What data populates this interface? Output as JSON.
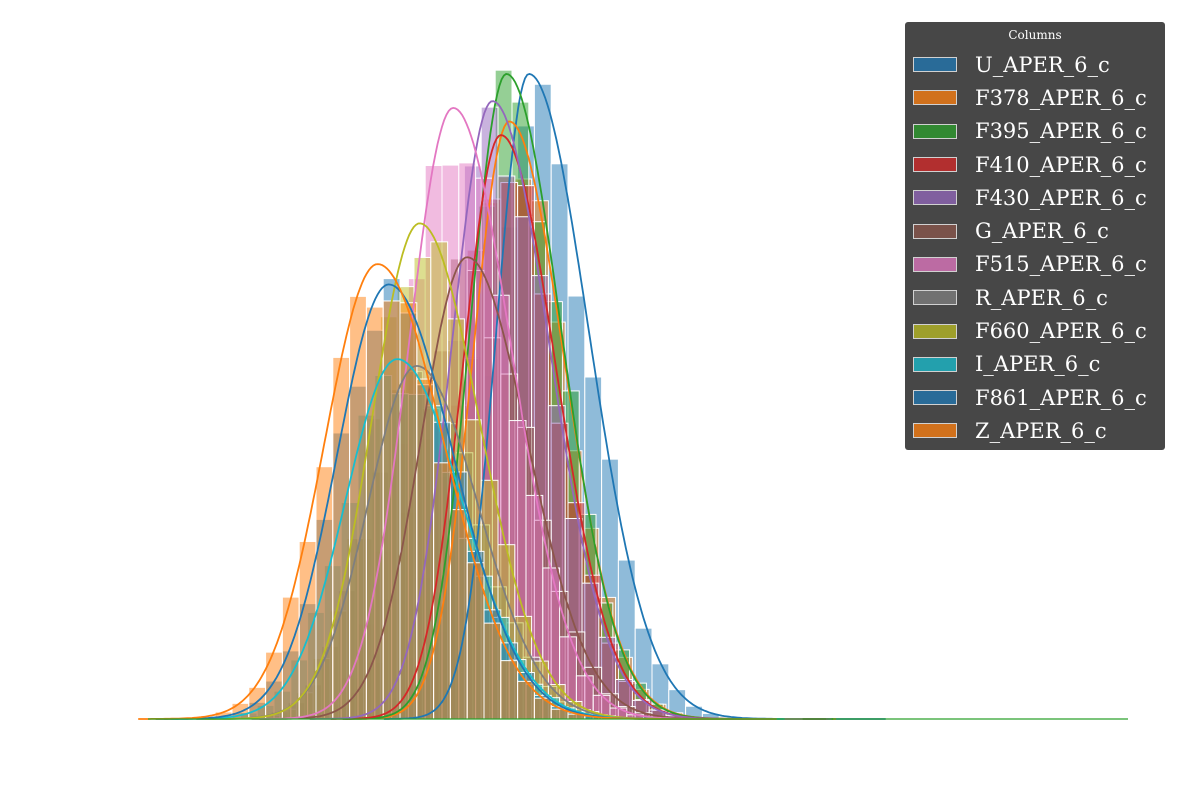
{
  "chart_data": {
    "type": "histogram",
    "title": "",
    "xlabel": "",
    "ylabel": "",
    "grid": true,
    "axes_visible": false,
    "kde": true,
    "legend": {
      "title": "Columns",
      "position": "top-right"
    },
    "series": [
      {
        "name": "U_APER_6_c",
        "color": "#1f77b4",
        "mean": 17.6,
        "std": 1.15,
        "peak": 0.95,
        "skew": 0.85
      },
      {
        "name": "F378_APER_6_c",
        "color": "#ff7f0e",
        "mean": 16.9,
        "std": 1.3,
        "peak": 0.88,
        "skew": 0.5
      },
      {
        "name": "F395_APER_6_c",
        "color": "#2ca02c",
        "mean": 16.8,
        "std": 1.3,
        "peak": 0.95,
        "skew": 0.5
      },
      {
        "name": "F410_APER_6_c",
        "color": "#d62728",
        "mean": 16.6,
        "std": 1.35,
        "peak": 0.86,
        "skew": 0.45
      },
      {
        "name": "F430_APER_6_c",
        "color": "#9467bd",
        "mean": 16.3,
        "std": 1.45,
        "peak": 0.91,
        "skew": 0.4
      },
      {
        "name": "G_APER_6_c",
        "color": "#8c564b",
        "mean": 15.4,
        "std": 1.65,
        "peak": 0.68,
        "skew": 0.3
      },
      {
        "name": "F515_APER_6_c",
        "color": "#e377c2",
        "mean": 14.9,
        "std": 1.6,
        "peak": 0.9,
        "skew": 0.3
      },
      {
        "name": "R_APER_6_c",
        "color": "#7f7f7f",
        "mean": 13.6,
        "std": 1.75,
        "peak": 0.52,
        "skew": 0.25
      },
      {
        "name": "F660_APER_6_c",
        "color": "#bcbd22",
        "mean": 13.7,
        "std": 1.7,
        "peak": 0.73,
        "skew": 0.25
      },
      {
        "name": "I_APER_6_c",
        "color": "#17becf",
        "mean": 12.9,
        "std": 1.85,
        "peak": 0.53,
        "skew": 0.25
      },
      {
        "name": "F861_APER_6_c",
        "color": "#1f77b4",
        "mean": 12.6,
        "std": 1.85,
        "peak": 0.64,
        "skew": 0.25
      },
      {
        "name": "Z_APER_6_c",
        "color": "#ff7f0e",
        "mean": 12.2,
        "std": 1.9,
        "peak": 0.67,
        "skew": 0.25
      }
    ],
    "xlim": [
      4,
      39
    ],
    "ylim": [
      0,
      1.0
    ],
    "bin_width": 0.6
  }
}
